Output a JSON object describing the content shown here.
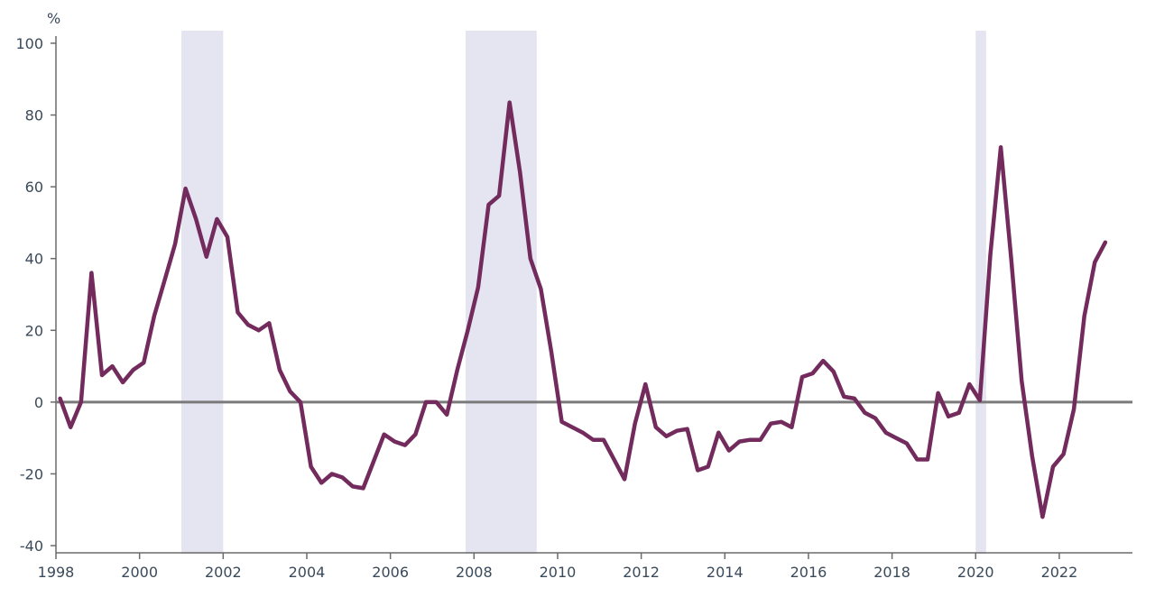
{
  "chart_data": {
    "type": "line",
    "title": "",
    "xlabel": "",
    "ylabel": "%",
    "xlim": [
      1998,
      2023.75
    ],
    "ylim": [
      -42,
      103
    ],
    "x_ticks": [
      "1998",
      "2000",
      "2002",
      "2004",
      "2006",
      "2008",
      "2010",
      "2012",
      "2014",
      "2016",
      "2018",
      "2020",
      "2022"
    ],
    "y_ticks": [
      "100",
      "80",
      "60",
      "40",
      "20",
      "0",
      "-20",
      "-40"
    ],
    "grid": false,
    "legend": "none",
    "zero_line": true,
    "colors": {
      "line": "#722B5C",
      "band": "#E5E4F1",
      "axis": "#6b6b6b",
      "zero_line": "#7a7a7a",
      "text": "#3a4a5a"
    },
    "shaded_periods": [
      {
        "start": 2001.0,
        "end": 2002.0
      },
      {
        "start": 2007.8,
        "end": 2009.5
      },
      {
        "start": 2020.0,
        "end": 2020.25
      }
    ],
    "series": [
      {
        "x": [
          1998.1,
          1998.35,
          1998.6,
          1998.85,
          1999.1,
          1999.35,
          1999.6,
          1999.85,
          2000.1,
          2000.35,
          2000.6,
          2000.85,
          2001.1,
          2001.35,
          2001.6,
          2001.85,
          2002.1,
          2002.35,
          2002.6,
          2002.85,
          2003.1,
          2003.35,
          2003.6,
          2003.85,
          2004.1,
          2004.35,
          2004.6,
          2004.85,
          2005.1,
          2005.35,
          2005.6,
          2005.85,
          2006.1,
          2006.35,
          2006.6,
          2006.85,
          2007.1,
          2007.35,
          2007.6,
          2007.85,
          2008.1,
          2008.35,
          2008.6,
          2008.85,
          2009.1,
          2009.35,
          2009.6,
          2009.85,
          2010.1,
          2010.35,
          2010.6,
          2010.85,
          2011.1,
          2011.35,
          2011.6,
          2011.85,
          2012.1,
          2012.35,
          2012.6,
          2012.85,
          2013.1,
          2013.35,
          2013.6,
          2013.85,
          2014.1,
          2014.35,
          2014.6,
          2014.85,
          2015.1,
          2015.35,
          2015.6,
          2015.85,
          2016.1,
          2016.35,
          2016.6,
          2016.85,
          2017.1,
          2017.35,
          2017.6,
          2017.85,
          2018.1,
          2018.35,
          2018.6,
          2018.85,
          2019.1,
          2019.35,
          2019.6,
          2019.85,
          2020.1,
          2020.35,
          2020.6,
          2020.85,
          2021.1,
          2021.35,
          2021.6,
          2021.85,
          2022.1,
          2022.35,
          2022.6,
          2022.85,
          2023.1
        ],
        "values": [
          1,
          -7,
          0,
          36,
          7.5,
          10,
          5.5,
          9,
          11,
          24,
          34,
          44,
          59.5,
          51,
          40.5,
          51,
          46,
          25,
          21.5,
          20,
          22,
          9,
          3,
          0,
          -18,
          -22.5,
          -20,
          -21,
          -23.5,
          -24,
          -16.5,
          -9,
          -11,
          -12,
          -9,
          0,
          0,
          -3.5,
          9,
          20,
          32,
          55,
          57.5,
          83.5,
          64,
          40,
          31.5,
          14,
          -5.5,
          -7,
          -8.5,
          -10.5,
          -10.5,
          -16,
          -21.5,
          -6,
          5,
          -7,
          -9.5,
          -8,
          -7.5,
          -19,
          -18,
          -8.5,
          -13.5,
          -11,
          -10.5,
          -10.5,
          -6,
          -5.5,
          -7,
          7,
          8,
          11.5,
          8.5,
          1.5,
          1,
          -3,
          -4.5,
          -8.5,
          -10,
          -11.5,
          -16,
          -16,
          2.5,
          -4,
          -3,
          5,
          0.5,
          41,
          71,
          40,
          6,
          -15,
          -32,
          -18,
          -14.5,
          -2,
          24,
          39,
          44.5
        ]
      }
    ]
  }
}
